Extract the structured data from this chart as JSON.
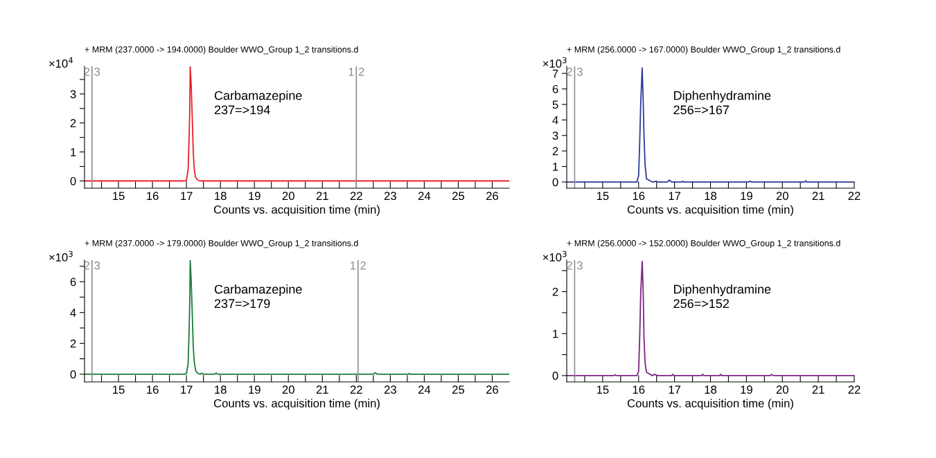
{
  "chart_data": [
    {
      "type": "line",
      "title": "+ MRM (237.0000 -> 194.0000) Boulder WWO_Group 1_2 transitions.d",
      "xlabel": "Counts vs. acquisition time (min)",
      "ylabel": "×10$^{4}$",
      "annotations": [
        "Carbamazepine\n237=>194",
        "2",
        "3",
        "1",
        "2"
      ],
      "series": [
        {
          "color": "#e8202a",
          "x": [
            14.0,
            16.95,
            17.0,
            17.05,
            17.08,
            17.1,
            17.11,
            17.14,
            17.17,
            17.2,
            17.23,
            17.27,
            17.33,
            17.4,
            26.5
          ],
          "values": [
            0,
            0,
            0.02,
            0.4,
            1.6,
            2.6,
            3.94,
            3.3,
            2.2,
            1.0,
            0.4,
            0.12,
            0.03,
            0,
            0
          ]
        }
      ],
      "xlim": [
        14.0,
        26.5
      ],
      "xticks": [
        {
          "value": 14.5,
          "label": null
        },
        15,
        {
          "value": 15.5,
          "label": null
        },
        16,
        {
          "value": 16.5,
          "label": null
        },
        17,
        {
          "value": 17.5,
          "label": null
        },
        18,
        {
          "value": 18.5,
          "label": null
        },
        19,
        {
          "value": 19.5,
          "label": null
        },
        20,
        {
          "value": 20.5,
          "label": null
        },
        21,
        {
          "value": 21.5,
          "label": null
        },
        22,
        {
          "value": 22.5,
          "label": null
        },
        23,
        {
          "value": 23.5,
          "label": null
        },
        24,
        {
          "value": 24.5,
          "label": null
        },
        25,
        {
          "value": 25.5,
          "label": null
        },
        26
      ],
      "ylim": [
        -0.25,
        3.95
      ],
      "yticks": [
        0,
        {
          "value": 0.5,
          "label": null
        },
        1,
        {
          "value": 1.5,
          "label": null
        },
        2,
        {
          "value": 2.5,
          "label": null
        },
        3,
        {
          "value": 3.5,
          "label": null
        }
      ],
      "ref_lines": [
        {
          "axis": "x",
          "value": 14.22,
          "color": "#8c8c8c"
        },
        {
          "axis": "x",
          "value": 22.0,
          "color": "#8c8c8c"
        }
      ],
      "grid": false,
      "legend": false
    },
    {
      "type": "line",
      "title": "+ MRM (256.0000 -> 167.0000) Boulder WWO_Group 1_2 transitions.d",
      "xlabel": "Counts vs. acquisition time (min)",
      "ylabel": "×10$^{3}$",
      "annotations": [
        "Diphenhydramine\n256=>167",
        "2",
        "3"
      ],
      "series": [
        {
          "color": "#2b3a9c",
          "x": [
            14.0,
            15.95,
            16.0,
            16.03,
            16.06,
            16.1,
            16.13,
            16.15,
            16.18,
            16.22,
            16.3,
            16.36,
            16.42,
            16.48,
            16.55,
            16.8,
            16.85,
            16.92,
            17.2,
            17.23,
            17.26,
            19.06,
            19.1,
            19.14,
            20.62,
            20.65,
            20.68,
            22.0
          ],
          "values": [
            0,
            0,
            0.4,
            2.5,
            5.2,
            7.35,
            5.0,
            3.0,
            1.1,
            0.2,
            0.1,
            0.02,
            0,
            0.05,
            0,
            0,
            0.12,
            0,
            0,
            0.05,
            0,
            0,
            0.05,
            0,
            0,
            0.07,
            0,
            0
          ]
        }
      ],
      "xlim": [
        14.0,
        22.0
      ],
      "xticks": [
        {
          "value": 14.5,
          "label": null
        },
        15,
        {
          "value": 15.5,
          "label": null
        },
        16,
        {
          "value": 16.5,
          "label": null
        },
        17,
        {
          "value": 17.5,
          "label": null
        },
        18,
        {
          "value": 18.5,
          "label": null
        },
        19,
        {
          "value": 19.5,
          "label": null
        },
        20,
        {
          "value": 20.5,
          "label": null
        },
        21,
        {
          "value": 21.5,
          "label": null
        },
        22
      ],
      "ylim": [
        -0.4,
        7.45
      ],
      "yticks": [
        0,
        1,
        2,
        3,
        4,
        5,
        6,
        7
      ],
      "ref_lines": [
        {
          "axis": "x",
          "value": 14.22,
          "color": "#8c8c8c"
        }
      ],
      "grid": false,
      "legend": false
    },
    {
      "type": "line",
      "title": "+ MRM (237.0000 -> 179.0000) Boulder WWO_Group 1_2 transitions.d",
      "xlabel": "Counts vs. acquisition time (min)",
      "ylabel": "×10$^{3}$",
      "annotations": [
        "Carbamazepine\n237=>179",
        "2",
        "3",
        "1",
        "2"
      ],
      "series": [
        {
          "color": "#1a7a3a",
          "x": [
            14.0,
            16.95,
            17.0,
            17.05,
            17.08,
            17.1,
            17.11,
            17.14,
            17.17,
            17.2,
            17.23,
            17.27,
            17.33,
            17.4,
            17.45,
            17.5,
            17.83,
            17.87,
            17.92,
            22.5,
            22.55,
            22.62,
            23.52,
            23.55,
            23.58,
            26.5
          ],
          "values": [
            0,
            0,
            0.05,
            0.7,
            3.0,
            5.0,
            7.4,
            6.0,
            4.0,
            1.8,
            0.8,
            0.25,
            0.05,
            0,
            0.06,
            0,
            0,
            0.08,
            0,
            0,
            0.09,
            0,
            0,
            0.04,
            0,
            0
          ]
        }
      ],
      "xlim": [
        14.0,
        26.5
      ],
      "xticks": [
        {
          "value": 14.5,
          "label": null
        },
        15,
        {
          "value": 15.5,
          "label": null
        },
        16,
        {
          "value": 16.5,
          "label": null
        },
        17,
        {
          "value": 17.5,
          "label": null
        },
        18,
        {
          "value": 18.5,
          "label": null
        },
        19,
        {
          "value": 19.5,
          "label": null
        },
        20,
        {
          "value": 20.5,
          "label": null
        },
        21,
        {
          "value": 21.5,
          "label": null
        },
        22,
        {
          "value": 22.5,
          "label": null
        },
        23,
        {
          "value": 23.5,
          "label": null
        },
        24,
        {
          "value": 24.5,
          "label": null
        },
        25,
        {
          "value": 25.5,
          "label": null
        },
        26
      ],
      "ylim": [
        -0.5,
        7.4
      ],
      "yticks": [
        0,
        {
          "value": 1,
          "label": null
        },
        2,
        {
          "value": 3,
          "label": null
        },
        4,
        {
          "value": 5,
          "label": null
        },
        6,
        {
          "value": 7,
          "label": null
        }
      ],
      "ref_lines": [
        {
          "axis": "x",
          "value": 14.22,
          "color": "#8c8c8c"
        },
        {
          "axis": "x",
          "value": 22.05,
          "color": "#8c8c8c"
        }
      ],
      "grid": false,
      "legend": false
    },
    {
      "type": "line",
      "title": "+ MRM (256.0000 -> 152.0000) Boulder WWO_Group 1_2 transitions.d",
      "xlabel": "Counts vs. acquisition time (min)",
      "ylabel": "×10$^{3}$",
      "annotations": [
        "Diphenhydramine\n256=>152",
        "2",
        "3"
      ],
      "series": [
        {
          "color": "#7b2382",
          "x": [
            14.0,
            15.32,
            15.35,
            15.38,
            15.95,
            16.0,
            16.03,
            16.06,
            16.1,
            16.13,
            16.15,
            16.18,
            16.22,
            16.3,
            16.38,
            16.45,
            16.52,
            16.92,
            16.95,
            16.98,
            17.75,
            17.78,
            17.81,
            18.25,
            18.28,
            18.31,
            19.66,
            19.7,
            19.74,
            22.0
          ],
          "values": [
            0,
            0,
            0.02,
            0,
            0,
            0.1,
            0.9,
            2.0,
            2.72,
            1.9,
            0.9,
            0.3,
            0.08,
            0.04,
            0,
            0.03,
            0,
            0,
            0.03,
            0,
            0,
            0.03,
            0,
            0,
            0.03,
            0,
            0,
            0.03,
            0,
            0
          ]
        }
      ],
      "xlim": [
        14.0,
        22.0
      ],
      "xticks": [
        {
          "value": 14.5,
          "label": null
        },
        15,
        {
          "value": 15.5,
          "label": null
        },
        16,
        {
          "value": 16.5,
          "label": null
        },
        17,
        {
          "value": 17.5,
          "label": null
        },
        18,
        {
          "value": 18.5,
          "label": null
        },
        19,
        {
          "value": 19.5,
          "label": null
        },
        20,
        {
          "value": 20.5,
          "label": null
        },
        21,
        {
          "value": 21.5,
          "label": null
        },
        22
      ],
      "ylim": [
        -0.15,
        2.75
      ],
      "yticks": [
        0,
        {
          "value": 0.5,
          "label": null
        },
        1,
        {
          "value": 1.5,
          "label": null
        },
        2,
        {
          "value": 2.5,
          "label": null
        }
      ],
      "ref_lines": [
        {
          "axis": "x",
          "value": 14.22,
          "color": "#8c8c8c"
        }
      ],
      "grid": false,
      "legend": false
    }
  ]
}
